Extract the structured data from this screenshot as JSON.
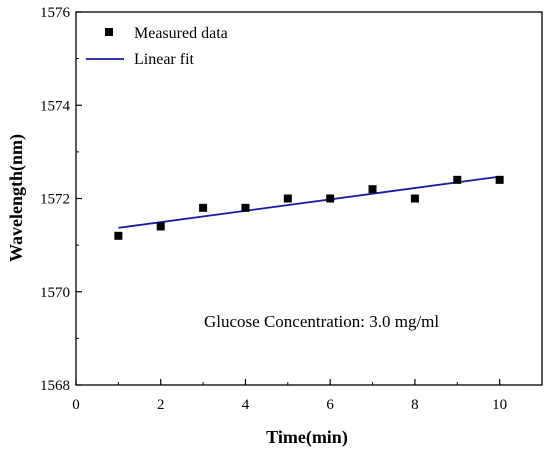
{
  "chart_data": {
    "type": "scatter",
    "xlabel": "Time(min)",
    "ylabel": "Wavelength(nm)",
    "xlim": [
      0,
      11
    ],
    "ylim": [
      1568,
      1576
    ],
    "xticks": [
      0,
      2,
      4,
      6,
      8,
      10
    ],
    "yticks": [
      1568,
      1570,
      1572,
      1574,
      1576
    ],
    "grid": false,
    "legend_position": "top-left",
    "series": [
      {
        "name": "Measured data",
        "kind": "scatter",
        "marker": "square",
        "color": "#000000",
        "x": [
          1,
          2,
          3,
          4,
          5,
          6,
          7,
          8,
          9,
          10
        ],
        "y": [
          1571.2,
          1571.4,
          1571.8,
          1571.8,
          1572.0,
          1572.0,
          1572.2,
          1572.0,
          1572.4,
          1572.4
        ]
      },
      {
        "name": "Linear fit",
        "kind": "line",
        "color": "#1a1aa0",
        "x": [
          1,
          10
        ],
        "y": [
          1571.37,
          1572.47
        ]
      }
    ],
    "annotations": [
      "Glucose Concentration: 3.0 mg/ml"
    ]
  }
}
